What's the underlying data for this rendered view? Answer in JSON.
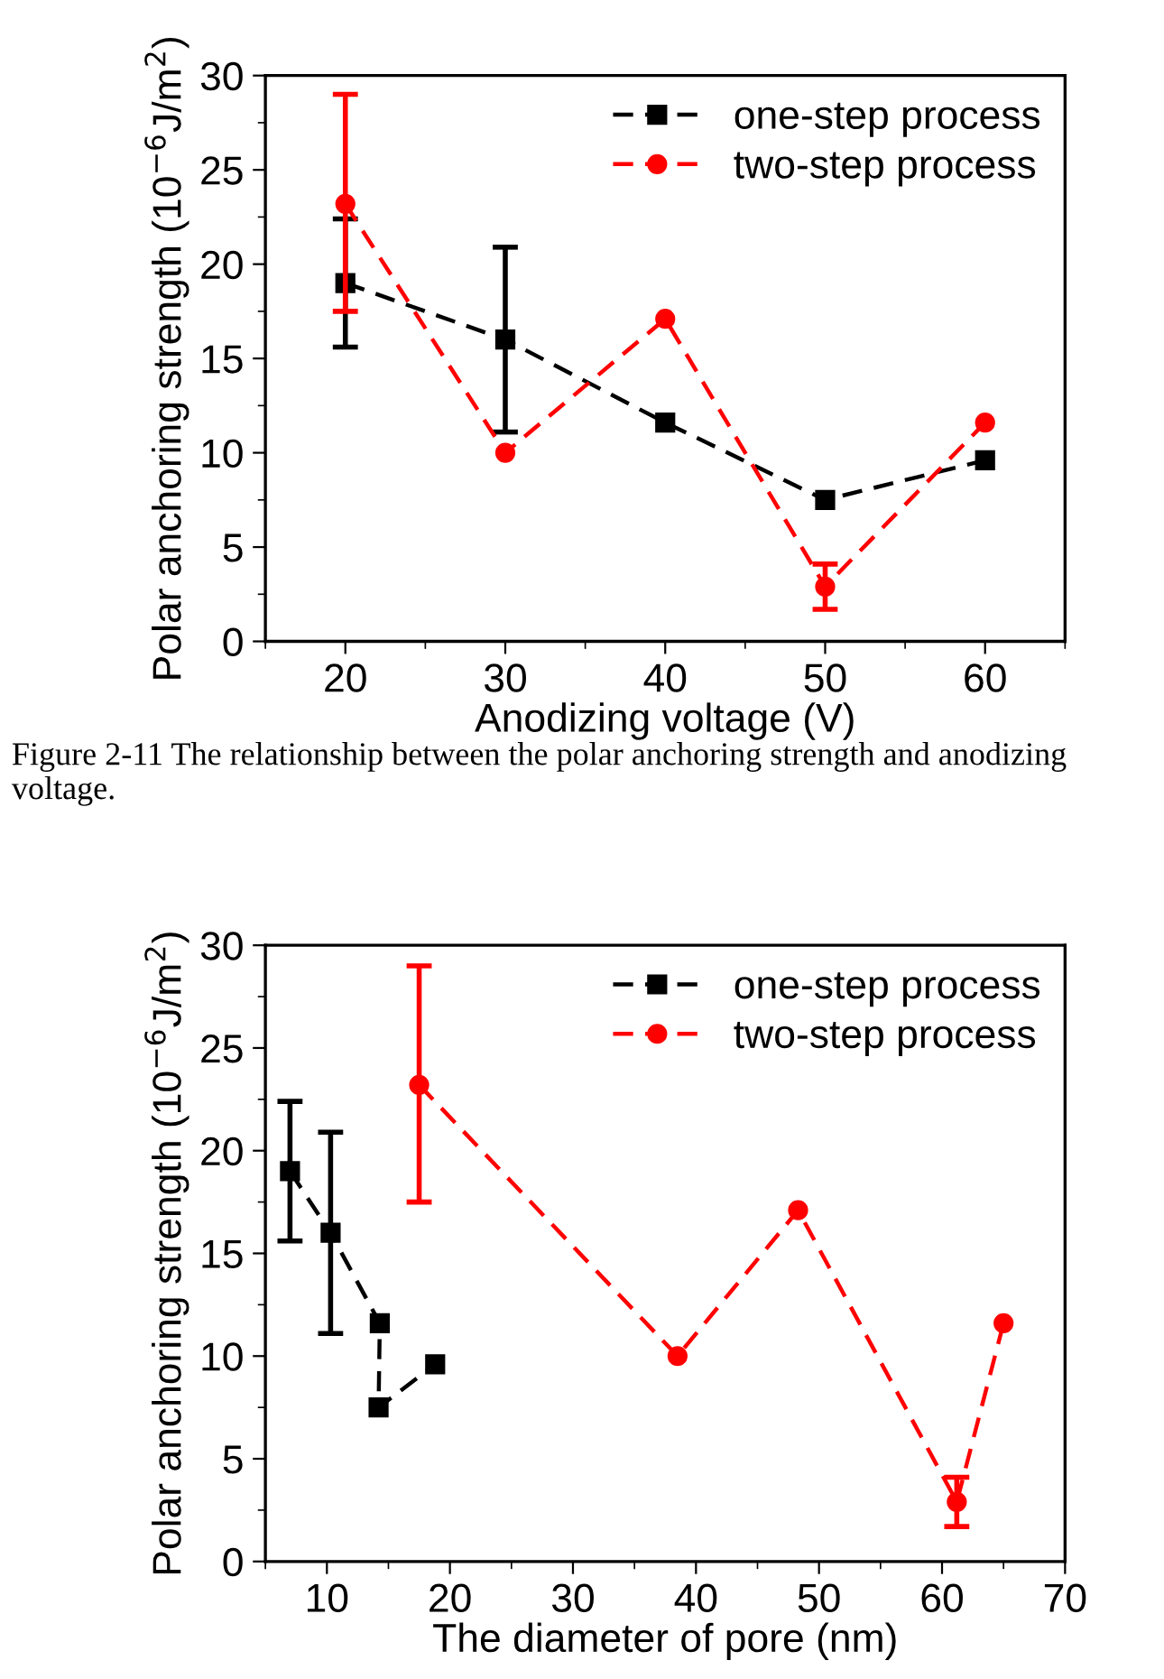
{
  "chart_data": [
    {
      "type": "line",
      "xlabel": "Anodizing voltage (V)",
      "ylabel": "Polar anchoring strength (10$^{−6}$J/m$^{2}$)",
      "xlim": [
        15,
        65
      ],
      "xticks": [
        20,
        30,
        40,
        50,
        60
      ],
      "ylim": [
        0,
        30
      ],
      "yticks": [
        0,
        5,
        10,
        15,
        20,
        25,
        30
      ],
      "legend": "top right",
      "line_style": "dashed",
      "grid": false,
      "annotations": [
        "Figure 2-11 The relationship between the polar anchoring strength and anodizing voltage."
      ],
      "series": [
        {
          "name": "one-step process",
          "color": "#000000",
          "marker": "square",
          "x": [
            20,
            30,
            40,
            50,
            60
          ],
          "values": [
            19,
            16,
            11.6,
            7.5,
            9.6
          ],
          "errors": [
            [
              15.6,
              22.4
            ],
            [
              11.1,
              20.9
            ],
            null,
            null,
            null
          ]
        },
        {
          "name": "two-step process",
          "color": "#ff0000",
          "marker": "circle",
          "x": [
            20,
            30,
            40,
            50,
            60
          ],
          "values": [
            23.2,
            10,
            17.1,
            2.9,
            11.6
          ],
          "errors": [
            [
              17.5,
              29
            ],
            null,
            null,
            [
              1.7,
              4.1
            ],
            null
          ]
        }
      ]
    },
    {
      "type": "line",
      "xlabel": "The diameter of pore (nm)",
      "ylabel": "Polar anchoring strength (10$^{−6}$J/m$^{2}$)",
      "xlim": [
        5,
        70
      ],
      "xticks": [
        10,
        20,
        30,
        40,
        50,
        60,
        70
      ],
      "ylim": [
        0,
        30
      ],
      "yticks": [
        0,
        5,
        10,
        15,
        20,
        25,
        30
      ],
      "legend": "top right",
      "line_style": "dashed",
      "grid": false,
      "series": [
        {
          "name": "one-step process",
          "color": "#000000",
          "marker": "square",
          "x": [
            7,
            10.3,
            14.3,
            14.2,
            18.8
          ],
          "values": [
            19,
            16,
            11.6,
            7.5,
            9.6
          ],
          "errors": [
            [
              15.6,
              22.4
            ],
            [
              11.1,
              20.9
            ],
            null,
            null,
            null
          ]
        },
        {
          "name": "two-step process",
          "color": "#ff0000",
          "marker": "circle",
          "x": [
            17.5,
            38.5,
            48.3,
            61.2,
            65
          ],
          "values": [
            23.2,
            10,
            17.1,
            2.9,
            11.6
          ],
          "errors": [
            [
              17.5,
              29
            ],
            null,
            null,
            [
              1.7,
              4.1
            ],
            null
          ]
        }
      ]
    }
  ]
}
